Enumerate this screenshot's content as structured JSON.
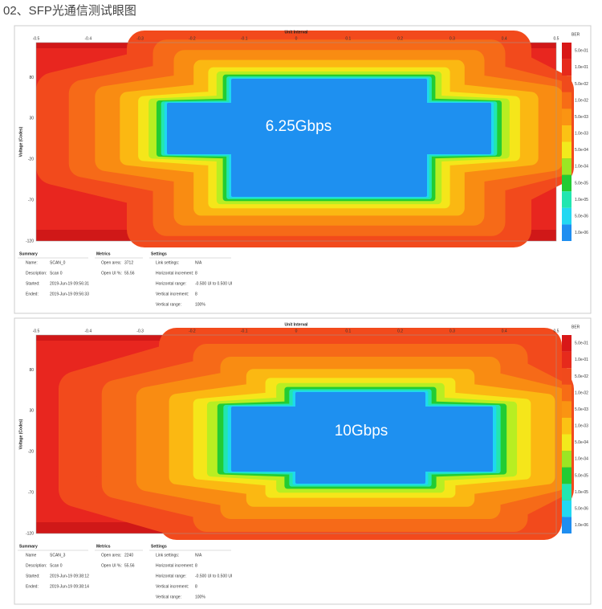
{
  "title": "02、SFP光通信测试眼图",
  "panels": [
    {
      "x_axis_title": "Unit Interval",
      "x_ticks": [
        "-0.5",
        "-0.4",
        "-0.3",
        "-0.2",
        "-0.1",
        "0",
        "0.1",
        "0.2",
        "0.3",
        "0.4",
        "0.5"
      ],
      "y_axis_title": "Voltage (Codes)",
      "y_ticks": [
        "80",
        "30",
        "-20",
        "-70",
        "-120"
      ],
      "legend_title": "BER",
      "legend_labels": [
        "5.0e-01",
        "1.0e-01",
        "5.0e-02",
        "1.0e-02",
        "5.0e-03",
        "1.0e-03",
        "5.0e-04",
        "1.0e-04",
        "5.0e-05",
        "1.0e-05",
        "5.0e-06",
        "1.0e-06"
      ],
      "rate_label": "6.25Gbps",
      "summary": {
        "heading": "Summary",
        "rows": [
          [
            "Name:",
            "SCAN_0"
          ],
          [
            "Description:",
            "Scan 0"
          ],
          [
            "Started:",
            "2019-Jun-19 09:56:31"
          ],
          [
            "Ended:",
            "2019-Jun-19 09:56:33"
          ]
        ]
      },
      "metrics": {
        "heading": "Metrics",
        "rows": [
          [
            "Open area:",
            "3712"
          ],
          [
            "Open UI %:",
            "55.56"
          ]
        ]
      },
      "settings": {
        "heading": "Settings",
        "rows": [
          [
            "Link settings:",
            "N/A"
          ],
          [
            "Horizontal increment:",
            "8"
          ],
          [
            "Horizontal range:",
            "-0.500 UI to 0.500 UI"
          ],
          [
            "Vertical increment:",
            "8"
          ],
          [
            "Vertical range:",
            "100%"
          ]
        ]
      }
    },
    {
      "x_axis_title": "Unit Interval",
      "x_ticks": [
        "-0.5",
        "-0.4",
        "-0.3",
        "-0.2",
        "-0.1",
        "0",
        "0.1",
        "0.2",
        "0.3",
        "0.4",
        "0.5"
      ],
      "y_axis_title": "Voltage (Codes)",
      "y_ticks": [
        "80",
        "30",
        "-20",
        "-70",
        "-120"
      ],
      "legend_title": "BER",
      "legend_labels": [
        "5.0e-01",
        "1.0e-01",
        "5.0e-02",
        "1.0e-02",
        "5.0e-03",
        "1.0e-03",
        "5.0e-04",
        "1.0e-04",
        "5.0e-05",
        "1.0e-05",
        "5.0e-06",
        "1.0e-06"
      ],
      "rate_label": "10Gbps",
      "summary": {
        "heading": "Summary",
        "rows": [
          [
            "Name",
            "SCAN_3"
          ],
          [
            "Description:",
            "Scan 0"
          ],
          [
            "Started:",
            "2019-Jun-19 09:38:12"
          ],
          [
            "Ended:",
            "2019-Jun-19 09:38:14"
          ]
        ]
      },
      "metrics": {
        "heading": "Metrics",
        "rows": [
          [
            "Open area:",
            "2240"
          ],
          [
            "Open UI %:",
            "55.56"
          ]
        ]
      },
      "settings": {
        "heading": "Settings",
        "rows": [
          [
            "Link settings:",
            "N/A"
          ],
          [
            "Horizontal increment:",
            "8"
          ],
          [
            "Horizontal range:",
            "-0.500 UI to 0.500 UI"
          ],
          [
            "Vertical increment:",
            "8"
          ],
          [
            "Vertical range:",
            "100%"
          ]
        ]
      }
    }
  ]
}
